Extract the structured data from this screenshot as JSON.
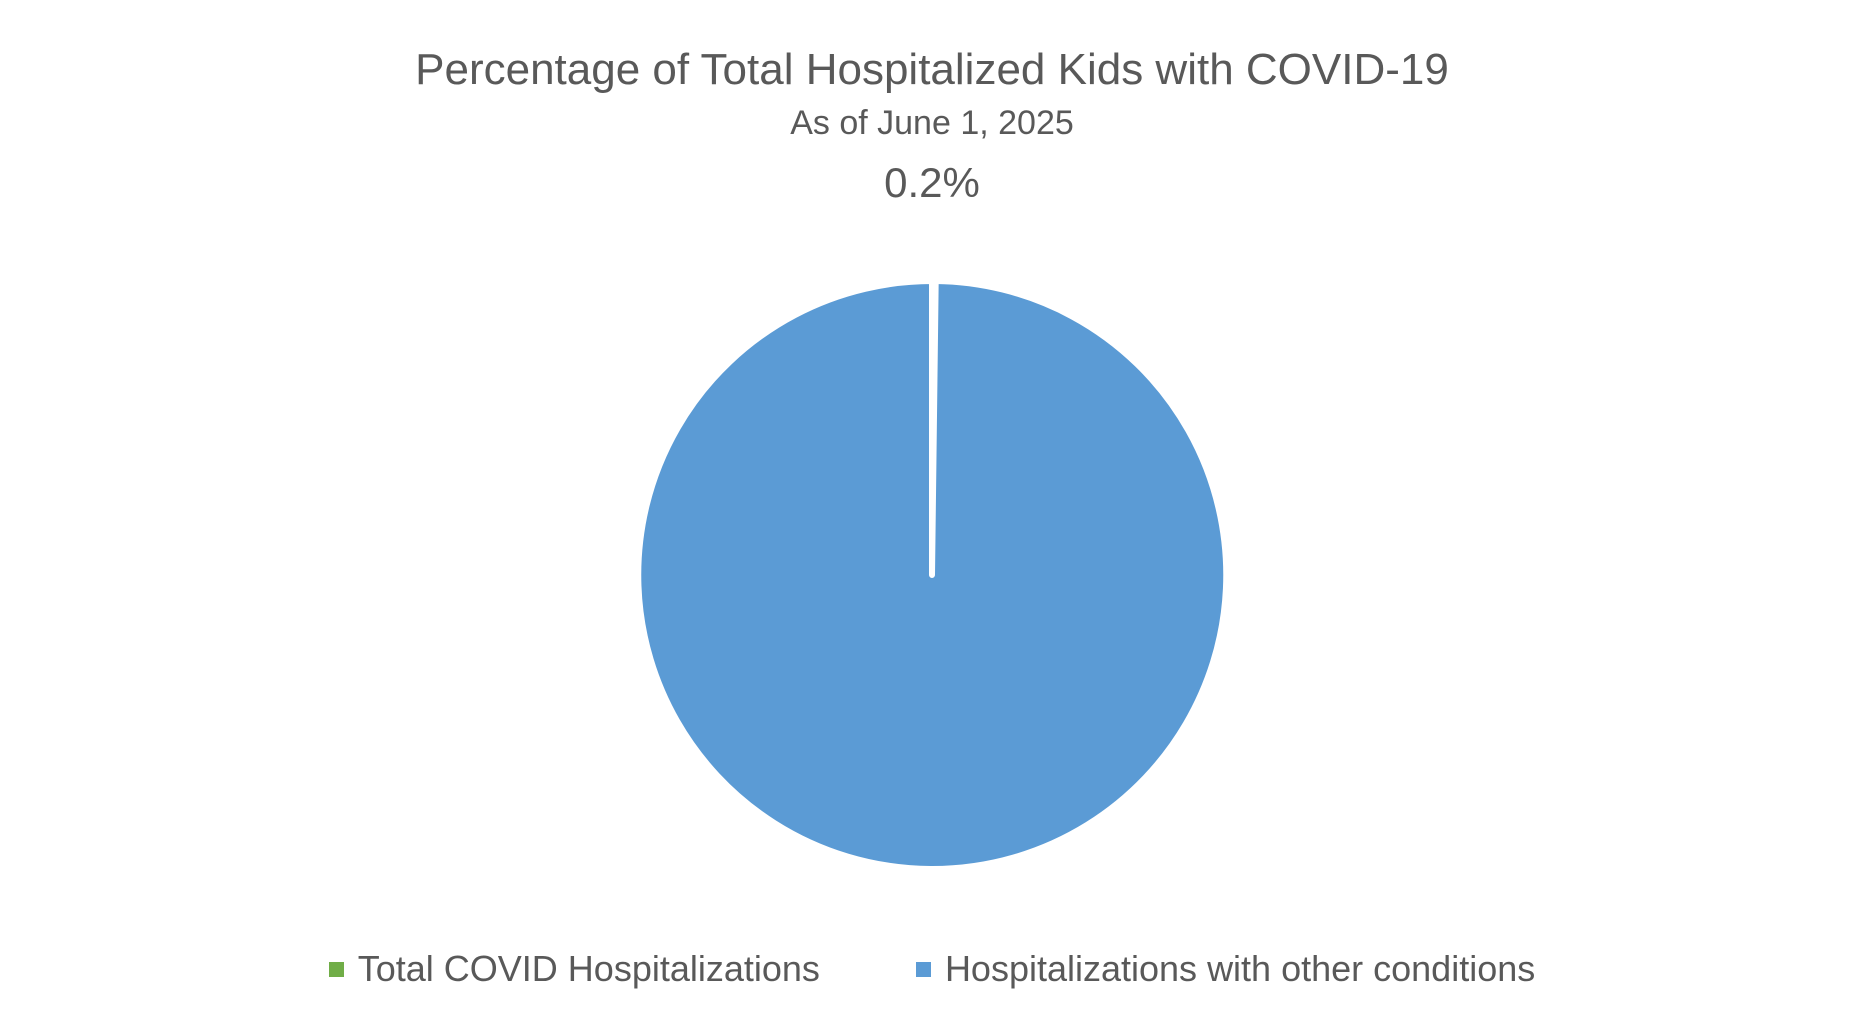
{
  "chart_data": {
    "type": "pie",
    "title": "Percentage of Total Hospitalized Kids with COVID-19",
    "subtitle": "As of June 1, 2025",
    "annotation": "0.2%",
    "start_angle_deg": 0,
    "direction": "clockwise",
    "slice_separator_color": "#ffffff",
    "legend_position": "bottom",
    "series": [
      {
        "name": "Total COVID Hospitalizations",
        "value": 0.2,
        "color": "#70AD47"
      },
      {
        "name": "Hospitalizations with other conditions",
        "value": 99.8,
        "color": "#5B9BD5"
      }
    ]
  }
}
